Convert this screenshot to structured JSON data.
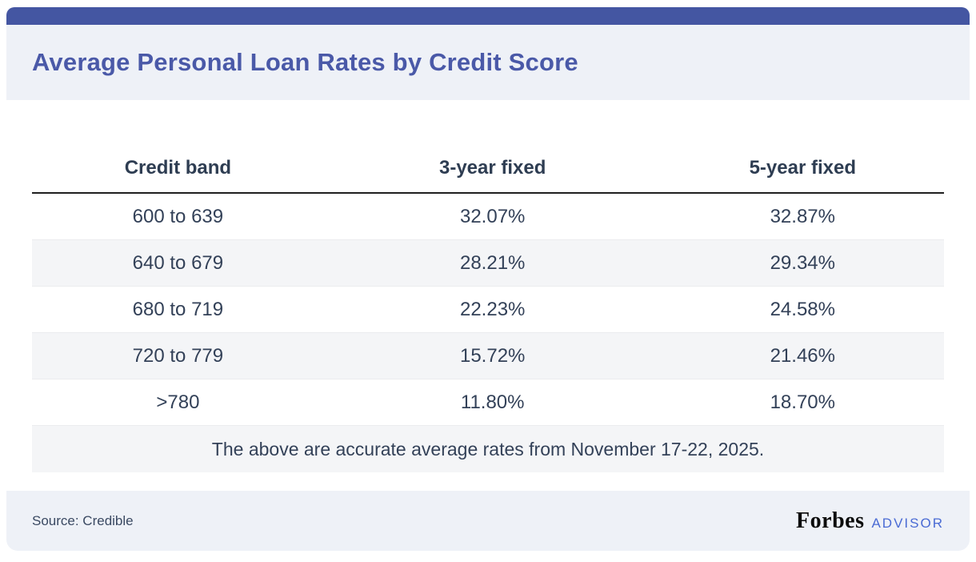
{
  "page": {
    "title": "Average Personal Loan Rates by Credit Score",
    "source_label": "Source: Credible",
    "brand": {
      "name": "Forbes",
      "suffix": "ADVISOR"
    }
  },
  "chart_data": {
    "type": "table",
    "title": "Average Personal Loan Rates by Credit Score",
    "columns": [
      "Credit band",
      "3-year fixed",
      "5-year fixed"
    ],
    "rows": [
      [
        "600 to 639",
        "32.07%",
        "32.87%"
      ],
      [
        "640 to 679",
        "28.21%",
        "29.34%"
      ],
      [
        "680 to 719",
        "22.23%",
        "24.58%"
      ],
      [
        "720 to 779",
        "15.72%",
        "21.46%"
      ],
      [
        ">780",
        "11.80%",
        "18.70%"
      ]
    ],
    "note": "The above are accurate average rates from November 17-22, 2025.",
    "source": "Credible"
  },
  "colors": {
    "accent_bar": "#4456a2",
    "title_text": "#4a59a8",
    "panel_background": "#eef1f7",
    "row_alternate": "#f4f5f7",
    "body_text": "#334158",
    "header_divider": "#1f1f1f",
    "advisor_blue": "#4a6bd4"
  }
}
